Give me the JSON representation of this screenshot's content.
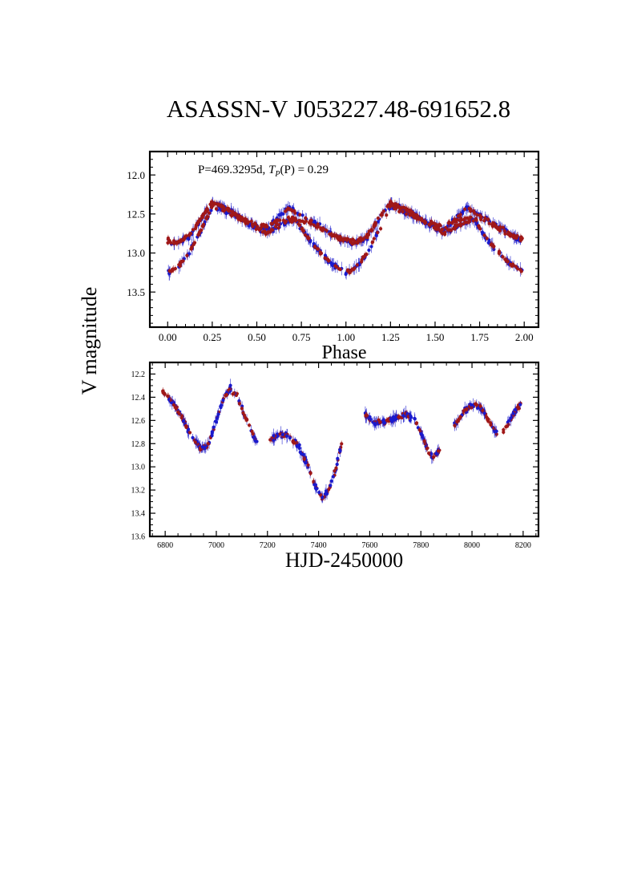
{
  "figure": {
    "title": "ASASSN-V J053227.48-691652.8",
    "ylabel": "V magnitude"
  },
  "chart_data": [
    {
      "type": "scatter",
      "panel": "phased light curve",
      "annotation": "P=469.3295d,  T_P(P) = 0.29",
      "annotation_text": "P=469.3295d,",
      "annotation_formula": "T",
      "annotation_sub": "P",
      "annotation_formula_rest": "(P) = 0.29",
      "xlabel": "Phase",
      "ylabel": "V magnitude",
      "xlim": [
        -0.1,
        2.08
      ],
      "ylim": [
        13.95,
        11.7
      ],
      "y_inverted": true,
      "xticks": [
        "0.00",
        "0.25",
        "0.50",
        "0.75",
        "1.00",
        "1.25",
        "1.50",
        "1.75",
        "2.00"
      ],
      "yticks": [
        "12.0",
        "12.5",
        "13.0",
        "13.5"
      ],
      "series": [
        {
          "color": "#1a1acd",
          "phase_curve": [
            [
              0.0,
              12.85
            ],
            [
              0.05,
              12.88
            ],
            [
              0.12,
              12.8
            ],
            [
              0.2,
              12.52
            ],
            [
              0.25,
              12.35
            ],
            [
              0.35,
              12.45
            ],
            [
              0.45,
              12.62
            ],
            [
              0.55,
              12.7
            ],
            [
              0.62,
              12.55
            ],
            [
              0.68,
              12.42
            ],
            [
              0.75,
              12.52
            ],
            [
              0.85,
              12.65
            ],
            [
              0.95,
              12.8
            ],
            [
              1.0,
              12.85
            ]
          ],
          "phase_curve_secondary": [
            [
              0.0,
              13.25
            ],
            [
              0.05,
              13.2
            ],
            [
              0.12,
              13.0
            ],
            [
              0.2,
              12.65
            ],
            [
              0.25,
              12.4
            ],
            [
              0.4,
              12.55
            ],
            [
              0.55,
              12.75
            ],
            [
              0.65,
              12.62
            ],
            [
              0.72,
              12.58
            ],
            [
              0.8,
              12.85
            ],
            [
              0.9,
              13.1
            ],
            [
              1.0,
              13.25
            ]
          ]
        },
        {
          "color": "#a01818",
          "phase_curve": [
            [
              0.0,
              12.82
            ],
            [
              0.05,
              12.86
            ],
            [
              0.12,
              12.78
            ],
            [
              0.2,
              12.5
            ],
            [
              0.25,
              12.36
            ],
            [
              0.35,
              12.45
            ],
            [
              0.45,
              12.6
            ],
            [
              0.55,
              12.66
            ],
            [
              0.62,
              12.58
            ],
            [
              0.7,
              12.55
            ],
            [
              0.78,
              12.6
            ],
            [
              0.88,
              12.72
            ],
            [
              0.95,
              12.8
            ],
            [
              1.0,
              12.82
            ]
          ]
        }
      ]
    },
    {
      "type": "scatter",
      "panel": "light curve vs time",
      "xlabel": "HJD-2450000",
      "ylabel": "V magnitude",
      "xlim": [
        6740,
        8260
      ],
      "ylim": [
        13.6,
        12.1
      ],
      "y_inverted": true,
      "xticks": [
        "6800",
        "7000",
        "7200",
        "7400",
        "7600",
        "7800",
        "8000",
        "8200"
      ],
      "yticks": [
        "12.2",
        "12.4",
        "12.6",
        "12.8",
        "13.0",
        "13.2",
        "13.4",
        "13.6"
      ],
      "segments": [
        [
          [
            6790,
            12.35
          ],
          [
            6820,
            12.42
          ],
          [
            6860,
            12.55
          ],
          [
            6900,
            12.72
          ],
          [
            6940,
            12.85
          ],
          [
            6970,
            12.8
          ],
          [
            7000,
            12.6
          ],
          [
            7030,
            12.4
          ],
          [
            7055,
            12.33
          ],
          [
            7080,
            12.38
          ],
          [
            7110,
            12.55
          ],
          [
            7140,
            12.7
          ],
          [
            7160,
            12.8
          ]
        ],
        [
          [
            7210,
            12.78
          ],
          [
            7240,
            12.72
          ],
          [
            7280,
            12.73
          ],
          [
            7320,
            12.82
          ],
          [
            7360,
            13.0
          ],
          [
            7390,
            13.18
          ],
          [
            7415,
            13.28
          ],
          [
            7440,
            13.2
          ],
          [
            7470,
            13.0
          ],
          [
            7490,
            12.8
          ]
        ],
        [
          [
            7580,
            12.55
          ],
          [
            7620,
            12.62
          ],
          [
            7660,
            12.61
          ],
          [
            7700,
            12.58
          ],
          [
            7740,
            12.55
          ],
          [
            7770,
            12.58
          ],
          [
            7800,
            12.7
          ],
          [
            7830,
            12.88
          ],
          [
            7850,
            12.92
          ],
          [
            7875,
            12.85
          ]
        ],
        [
          [
            7930,
            12.65
          ],
          [
            7970,
            12.52
          ],
          [
            8010,
            12.46
          ],
          [
            8040,
            12.5
          ],
          [
            8070,
            12.62
          ],
          [
            8100,
            12.72
          ],
          [
            8130,
            12.68
          ],
          [
            8160,
            12.55
          ],
          [
            8190,
            12.46
          ]
        ]
      ],
      "series": [
        {
          "color": "#1a1acd"
        },
        {
          "color": "#a01818"
        }
      ]
    }
  ]
}
